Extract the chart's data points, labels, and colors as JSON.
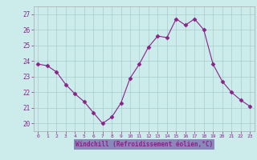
{
  "x": [
    0,
    1,
    2,
    3,
    4,
    5,
    6,
    7,
    8,
    9,
    10,
    11,
    12,
    13,
    14,
    15,
    16,
    17,
    18,
    19,
    20,
    21,
    22,
    23
  ],
  "y": [
    23.8,
    23.7,
    23.3,
    22.5,
    21.9,
    21.4,
    20.7,
    20.0,
    20.4,
    21.3,
    22.9,
    23.8,
    24.9,
    25.6,
    25.5,
    26.7,
    26.3,
    26.7,
    26.0,
    23.8,
    22.7,
    22.0,
    21.5,
    21.1
  ],
  "xlabel": "Windchill (Refroidissement éolien,°C)",
  "ylim": [
    19.5,
    27.5
  ],
  "yticks": [
    20,
    21,
    22,
    23,
    24,
    25,
    26,
    27
  ],
  "xticks": [
    0,
    1,
    2,
    3,
    4,
    5,
    6,
    7,
    8,
    9,
    10,
    11,
    12,
    13,
    14,
    15,
    16,
    17,
    18,
    19,
    20,
    21,
    22,
    23
  ],
  "line_color": "#882288",
  "marker": "D",
  "marker_size": 2.5,
  "bg_color": "#ccecec",
  "grid_color": "#aacccc",
  "label_bg": "#8888bb",
  "label_color": "#000000"
}
